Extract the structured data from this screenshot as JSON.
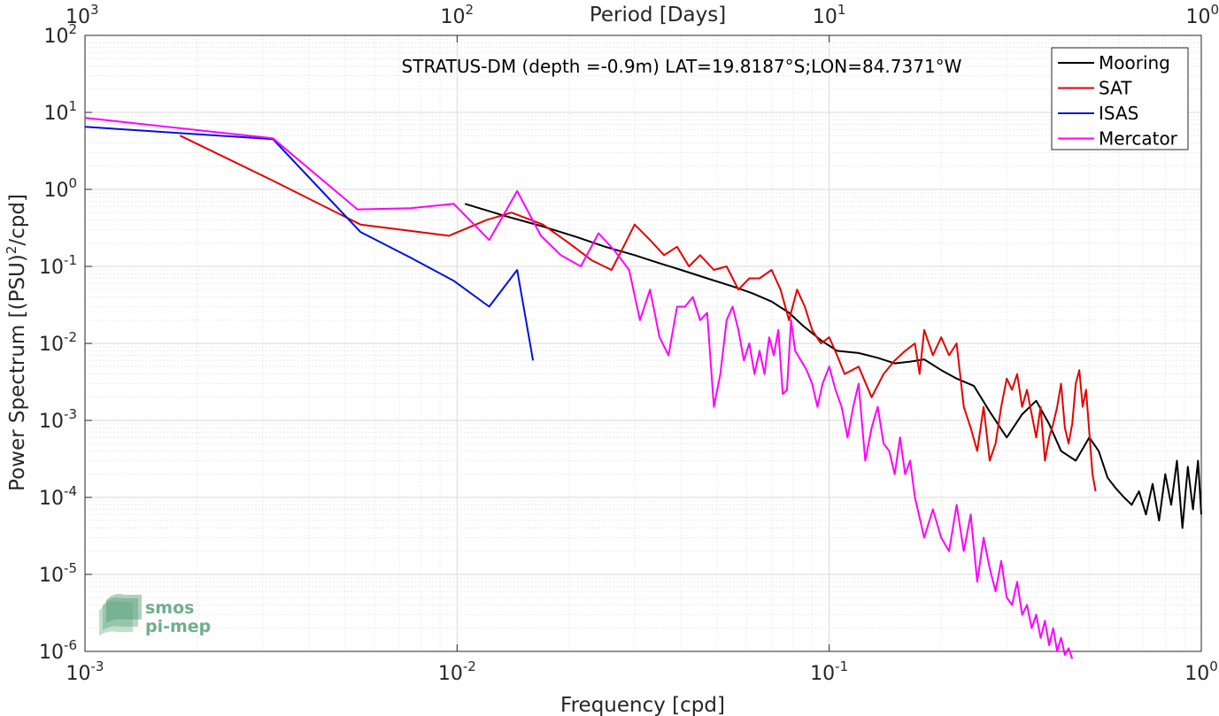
{
  "chart_data": {
    "type": "line",
    "title": "STRATUS-DM (depth =-0.9m) LAT=19.8187°S;LON=84.7371°W",
    "xlabel": "Frequency [cpd]",
    "ylabel_main": "Power Spectrum [(PSU)",
    "ylabel_sup": "2",
    "ylabel_tail": "/cpd]",
    "top_xlabel": "Period [Days]",
    "xscale": "log",
    "yscale": "log",
    "xlim": [
      0.001,
      1
    ],
    "ylim": [
      1e-06,
      100
    ],
    "grid": true,
    "legend_position": "top-right",
    "x_ticks": [
      {
        "value": 0.001,
        "base": "10",
        "exp": "-3"
      },
      {
        "value": 0.01,
        "base": "10",
        "exp": "-2"
      },
      {
        "value": 0.1,
        "base": "10",
        "exp": "-1"
      },
      {
        "value": 1,
        "base": "10",
        "exp": "0"
      }
    ],
    "top_ticks": [
      {
        "value": 0.001,
        "base": "10",
        "exp": "3"
      },
      {
        "value": 0.01,
        "base": "10",
        "exp": "2"
      },
      {
        "value": 0.1,
        "base": "10",
        "exp": "1"
      },
      {
        "value": 1,
        "base": "10",
        "exp": "0"
      }
    ],
    "y_ticks": [
      {
        "value": 100,
        "base": "10",
        "exp": "2"
      },
      {
        "value": 10,
        "base": "10",
        "exp": "1"
      },
      {
        "value": 1,
        "base": "10",
        "exp": "0"
      },
      {
        "value": 0.1,
        "base": "10",
        "exp": "-1"
      },
      {
        "value": 0.01,
        "base": "10",
        "exp": "-2"
      },
      {
        "value": 0.001,
        "base": "10",
        "exp": "-3"
      },
      {
        "value": 0.0001,
        "base": "10",
        "exp": "-4"
      },
      {
        "value": 1e-05,
        "base": "10",
        "exp": "-5"
      },
      {
        "value": 1e-06,
        "base": "10",
        "exp": "-6"
      }
    ],
    "series": [
      {
        "name": "Mooring",
        "color": "#000000",
        "x": [
          0.0105,
          0.0135,
          0.017,
          0.021,
          0.025,
          0.03,
          0.035,
          0.04,
          0.047,
          0.055,
          0.062,
          0.07,
          0.078,
          0.085,
          0.095,
          0.105,
          0.12,
          0.135,
          0.15,
          0.165,
          0.18,
          0.2,
          0.22,
          0.245,
          0.27,
          0.3,
          0.33,
          0.36,
          0.39,
          0.42,
          0.46,
          0.5,
          0.53,
          0.56,
          0.59,
          0.62,
          0.65,
          0.68,
          0.71,
          0.74,
          0.77,
          0.8,
          0.83,
          0.86,
          0.89,
          0.92,
          0.95,
          0.98,
          1.0
        ],
        "y": [
          0.65,
          0.45,
          0.33,
          0.24,
          0.18,
          0.14,
          0.11,
          0.09,
          0.07,
          0.055,
          0.045,
          0.035,
          0.025,
          0.017,
          0.011,
          0.008,
          0.0075,
          0.0065,
          0.0055,
          0.0058,
          0.0062,
          0.0045,
          0.0035,
          0.0028,
          0.0013,
          0.0006,
          0.0012,
          0.0018,
          0.0009,
          0.0004,
          0.0003,
          0.0006,
          0.0004,
          0.00018,
          0.00013,
          0.0001,
          8e-05,
          0.00012,
          6e-05,
          0.00015,
          5e-05,
          0.0002,
          8e-05,
          0.0003,
          4e-05,
          0.00025,
          7e-05,
          0.0003,
          6e-05
        ]
      },
      {
        "name": "SAT",
        "color": "#e60000",
        "x": [
          0.0018,
          0.0032,
          0.0055,
          0.0095,
          0.012,
          0.014,
          0.017,
          0.02,
          0.023,
          0.026,
          0.028,
          0.03,
          0.033,
          0.036,
          0.039,
          0.042,
          0.045,
          0.049,
          0.053,
          0.057,
          0.061,
          0.065,
          0.07,
          0.074,
          0.078,
          0.082,
          0.086,
          0.09,
          0.095,
          0.1,
          0.105,
          0.11,
          0.12,
          0.13,
          0.14,
          0.15,
          0.16,
          0.17,
          0.175,
          0.18,
          0.19,
          0.2,
          0.21,
          0.22,
          0.23,
          0.24,
          0.25,
          0.26,
          0.27,
          0.28,
          0.29,
          0.3,
          0.31,
          0.32,
          0.33,
          0.34,
          0.35,
          0.36,
          0.37,
          0.38,
          0.39,
          0.4,
          0.41,
          0.42,
          0.43,
          0.44,
          0.45,
          0.46,
          0.47,
          0.48,
          0.49,
          0.5,
          0.51,
          0.52
        ],
        "y": [
          5.0,
          1.3,
          0.35,
          0.25,
          0.4,
          0.5,
          0.35,
          0.2,
          0.12,
          0.09,
          0.18,
          0.35,
          0.22,
          0.14,
          0.18,
          0.1,
          0.14,
          0.09,
          0.1,
          0.05,
          0.07,
          0.07,
          0.09,
          0.05,
          0.02,
          0.05,
          0.03,
          0.015,
          0.01,
          0.012,
          0.007,
          0.004,
          0.005,
          0.002,
          0.004,
          0.006,
          0.008,
          0.01,
          0.004,
          0.015,
          0.007,
          0.012,
          0.007,
          0.01,
          0.0015,
          0.0008,
          0.0004,
          0.0015,
          0.0003,
          0.0005,
          0.0015,
          0.0035,
          0.0025,
          0.004,
          0.0015,
          0.0025,
          0.0012,
          0.0006,
          0.0015,
          0.0003,
          0.0006,
          0.0009,
          0.0015,
          0.003,
          0.0008,
          0.0005,
          0.0009,
          0.003,
          0.0045,
          0.0015,
          0.0025,
          0.0007,
          0.0002,
          0.00012
        ]
      },
      {
        "name": "ISAS",
        "color": "#0010e0",
        "x": [
          0.001,
          0.0032,
          0.0055,
          0.0075,
          0.0098,
          0.0122,
          0.0145,
          0.016
        ],
        "y": [
          6.5,
          4.5,
          0.28,
          0.13,
          0.065,
          0.03,
          0.09,
          0.006
        ]
      },
      {
        "name": "Mercator",
        "color": "#ff00ff",
        "x": [
          0.001,
          0.0032,
          0.0054,
          0.0075,
          0.0098,
          0.0122,
          0.0145,
          0.0168,
          0.019,
          0.0215,
          0.024,
          0.0265,
          0.029,
          0.031,
          0.033,
          0.035,
          0.037,
          0.039,
          0.041,
          0.043,
          0.045,
          0.047,
          0.049,
          0.051,
          0.053,
          0.055,
          0.057,
          0.059,
          0.061,
          0.063,
          0.065,
          0.067,
          0.069,
          0.071,
          0.073,
          0.075,
          0.077,
          0.079,
          0.081,
          0.084,
          0.087,
          0.09,
          0.093,
          0.096,
          0.1,
          0.104,
          0.108,
          0.112,
          0.116,
          0.12,
          0.125,
          0.13,
          0.135,
          0.14,
          0.145,
          0.15,
          0.155,
          0.16,
          0.165,
          0.17,
          0.18,
          0.19,
          0.2,
          0.21,
          0.22,
          0.23,
          0.24,
          0.25,
          0.26,
          0.27,
          0.28,
          0.29,
          0.3,
          0.31,
          0.32,
          0.33,
          0.34,
          0.35,
          0.36,
          0.37,
          0.38,
          0.39,
          0.4,
          0.41,
          0.42,
          0.43,
          0.44,
          0.45
        ],
        "y": [
          8.5,
          4.6,
          0.55,
          0.57,
          0.65,
          0.22,
          0.95,
          0.25,
          0.14,
          0.1,
          0.27,
          0.16,
          0.09,
          0.02,
          0.05,
          0.012,
          0.007,
          0.03,
          0.03,
          0.04,
          0.02,
          0.025,
          0.0015,
          0.004,
          0.02,
          0.03,
          0.015,
          0.006,
          0.01,
          0.004,
          0.008,
          0.004,
          0.012,
          0.007,
          0.015,
          0.0022,
          0.0025,
          0.02,
          0.008,
          0.006,
          0.0045,
          0.003,
          0.0015,
          0.003,
          0.005,
          0.0025,
          0.0015,
          0.0006,
          0.0015,
          0.003,
          0.0003,
          0.0008,
          0.0015,
          0.0005,
          0.0004,
          0.0002,
          0.0006,
          0.0002,
          0.0003,
          0.0001,
          3e-05,
          7e-05,
          3e-05,
          2e-05,
          8e-05,
          2e-05,
          6e-05,
          8e-06,
          3e-05,
          1.2e-05,
          6e-06,
          1.5e-05,
          5e-06,
          4e-06,
          8e-06,
          3e-06,
          4e-06,
          2e-06,
          3e-06,
          1.5e-06,
          2.5e-06,
          1.2e-06,
          2e-06,
          1e-06,
          1.5e-06,
          9e-07,
          1.1e-06,
          8e-07
        ]
      }
    ]
  },
  "logo": {
    "line1": "smos",
    "line2": "pi-mep"
  }
}
